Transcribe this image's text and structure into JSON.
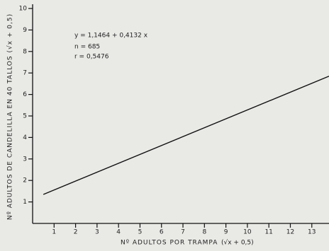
{
  "chart_data": {
    "type": "line",
    "x_label": "Nº ADULTOS POR TRAMPA",
    "x_label_unit": "(√x + 0,5)",
    "y_label": "Nº ADULTOS DE CANDELILLA EN 40 TALLOS (√x + 0,5)",
    "annotations": [
      "y = 1,1464 + 0,4132 x",
      "n = 685",
      "r = 0,5476"
    ],
    "x": [
      0.5,
      13.8
    ],
    "series": [
      {
        "color": "#111111",
        "values": [
          1.35,
          6.85
        ]
      }
    ],
    "xlim": [
      0,
      13.8
    ],
    "ylim": [
      0,
      10
    ],
    "xticks": [
      1,
      2,
      3,
      4,
      5,
      6,
      7,
      8,
      9,
      10,
      11,
      12,
      13
    ],
    "yticks": [
      1,
      2,
      3,
      4,
      5,
      6,
      7,
      8,
      9,
      10
    ]
  }
}
